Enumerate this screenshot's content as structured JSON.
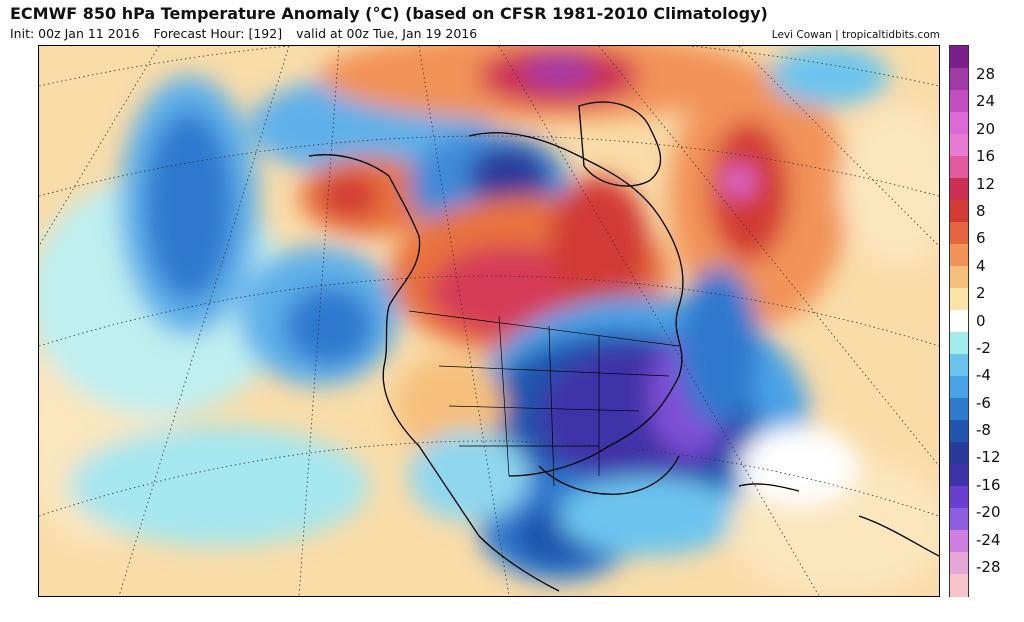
{
  "header": {
    "title": "ECMWF 850 hPa Temperature Anomaly (°C) (based on CFSR 1981-2010 Climatology)",
    "init": "Init: 00z Jan 11 2016",
    "forecast_hour": "Forecast Hour: [192]",
    "valid": "valid at 00z Tue, Jan 19 2016",
    "credit": "Levi Cowan | tropicaltidbits.com"
  },
  "map": {
    "region": "North America",
    "variable": "850 hPa Temperature Anomaly",
    "units": "°C"
  },
  "colorbar": {
    "labels": [
      "28",
      "24",
      "20",
      "16",
      "12",
      "8",
      "6",
      "4",
      "2",
      "0",
      "-2",
      "-4",
      "-6",
      "-8",
      "-12",
      "-16",
      "-20",
      "-24",
      "-28"
    ],
    "colors": [
      "#7a1f8c",
      "#a23aa6",
      "#c14fc2",
      "#dc6ad6",
      "#e77ad2",
      "#e35a9e",
      "#cc2f52",
      "#d23a34",
      "#e5653f",
      "#f29358",
      "#f6bf7c",
      "#fbe3a9",
      "#ffffff",
      "#a3ecec",
      "#6cc4ee",
      "#4aa2e6",
      "#2f79cf",
      "#1f55ae",
      "#2a3a9a",
      "#3f30a8",
      "#6a3ed0",
      "#8e5de0",
      "#cf7fe0",
      "#e7a6d8",
      "#f7c4cc"
    ]
  },
  "colors": {
    "warm_strong": "#d63a56",
    "warm_mid": "#e8723e",
    "warm_light": "#f7c88a",
    "cold_light": "#6cc4ee",
    "cold_mid": "#2f79cf",
    "cold_strong": "#2a3a9a",
    "cold_extreme": "#7f4fd6"
  }
}
